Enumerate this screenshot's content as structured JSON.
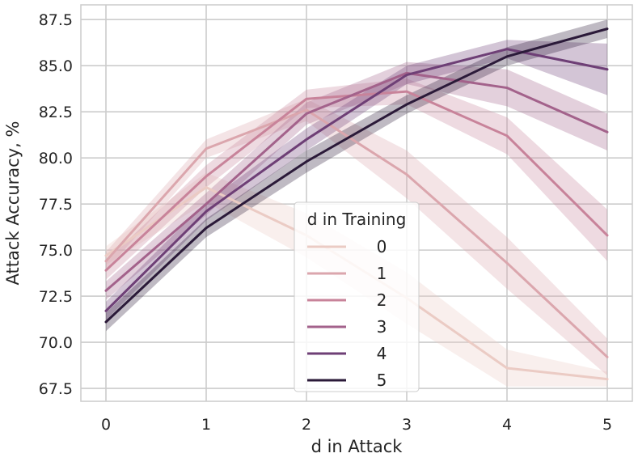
{
  "chart_data": {
    "type": "line",
    "xlabel": "d in Attack",
    "ylabel": "Attack Accuracy, %",
    "x": [
      0,
      1,
      2,
      3,
      4,
      5
    ],
    "xlim": [
      -0.25,
      5.25
    ],
    "ylim": [
      66.8,
      88.3
    ],
    "xticks": [
      "0",
      "1",
      "2",
      "3",
      "4",
      "5"
    ],
    "yticks": [
      "67.5",
      "70.0",
      "72.5",
      "75.0",
      "77.5",
      "80.0",
      "82.5",
      "85.0",
      "87.5"
    ],
    "grid": true,
    "legend": {
      "title": "d in Training",
      "placement": "lower-center"
    },
    "series": [
      {
        "name": "0",
        "color": "#ebcbc4",
        "values": [
          74.7,
          78.4,
          75.8,
          72.4,
          68.6,
          68.0
        ],
        "ci_low": [
          74.2,
          77.6,
          74.6,
          71.0,
          67.6,
          67.6
        ],
        "ci_high": [
          75.2,
          79.2,
          77.0,
          73.8,
          69.6,
          68.4
        ]
      },
      {
        "name": "1",
        "color": "#dba6ad",
        "values": [
          74.4,
          80.5,
          82.6,
          79.1,
          74.3,
          69.2
        ],
        "ci_low": [
          73.9,
          80.0,
          82.0,
          77.8,
          72.9,
          68.2
        ],
        "ci_high": [
          74.9,
          81.0,
          83.2,
          80.4,
          75.7,
          70.2
        ]
      },
      {
        "name": "2",
        "color": "#c8839a",
        "values": [
          73.9,
          79.0,
          83.2,
          83.6,
          81.2,
          75.8
        ],
        "ci_low": [
          73.4,
          78.4,
          82.7,
          82.9,
          80.2,
          74.4
        ],
        "ci_high": [
          74.4,
          79.6,
          83.7,
          84.3,
          82.2,
          77.2
        ]
      },
      {
        "name": "3",
        "color": "#a3628b",
        "values": [
          72.8,
          77.5,
          82.4,
          84.6,
          83.8,
          81.4
        ],
        "ci_low": [
          72.3,
          76.9,
          81.8,
          84.0,
          82.8,
          80.4
        ],
        "ci_high": [
          73.3,
          78.1,
          83.0,
          85.2,
          84.8,
          82.4
        ]
      },
      {
        "name": "4",
        "color": "#6e3f76",
        "values": [
          71.7,
          77.1,
          81.0,
          84.5,
          85.9,
          84.8
        ],
        "ci_low": [
          71.2,
          76.6,
          80.4,
          84.0,
          85.4,
          83.4
        ],
        "ci_high": [
          72.2,
          77.6,
          81.6,
          85.0,
          86.4,
          86.2
        ]
      },
      {
        "name": "5",
        "color": "#2b1a39",
        "values": [
          71.1,
          76.2,
          79.8,
          82.9,
          85.5,
          87.0
        ],
        "ci_low": [
          70.6,
          75.7,
          79.2,
          82.4,
          85.0,
          86.5
        ],
        "ci_high": [
          71.6,
          76.7,
          80.4,
          83.4,
          86.0,
          87.5
        ]
      }
    ]
  }
}
